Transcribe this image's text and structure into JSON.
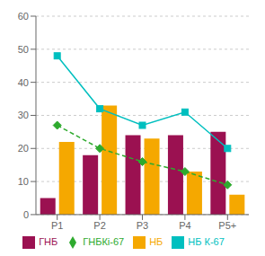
{
  "chart_data": {
    "type": "bar",
    "categories": [
      "Р1",
      "Р2",
      "Р3",
      "Р4",
      "Р5+"
    ],
    "series": [
      {
        "name": "ГНБ",
        "type": "bar",
        "color": "#9B1151",
        "values": [
          5,
          18,
          24,
          24,
          25
        ]
      },
      {
        "name": "НБ",
        "type": "bar",
        "color": "#F5A800",
        "values": [
          22,
          33,
          23,
          13,
          6
        ]
      },
      {
        "name": "ГНБКі-67",
        "type": "line",
        "color": "#2EAA2E",
        "marker": "diamond",
        "line_style": "dashed",
        "values": [
          27,
          20,
          16,
          13,
          9
        ]
      },
      {
        "name": "НБ К-67",
        "type": "line",
        "color": "#00BFBF",
        "marker": "square",
        "line_style": "solid",
        "values": [
          48,
          32,
          27,
          31,
          20
        ]
      }
    ],
    "ylim": [
      0,
      60
    ],
    "yticks": [
      0,
      10,
      20,
      30,
      40,
      50,
      60
    ],
    "grid": true,
    "legend": "bottom"
  }
}
